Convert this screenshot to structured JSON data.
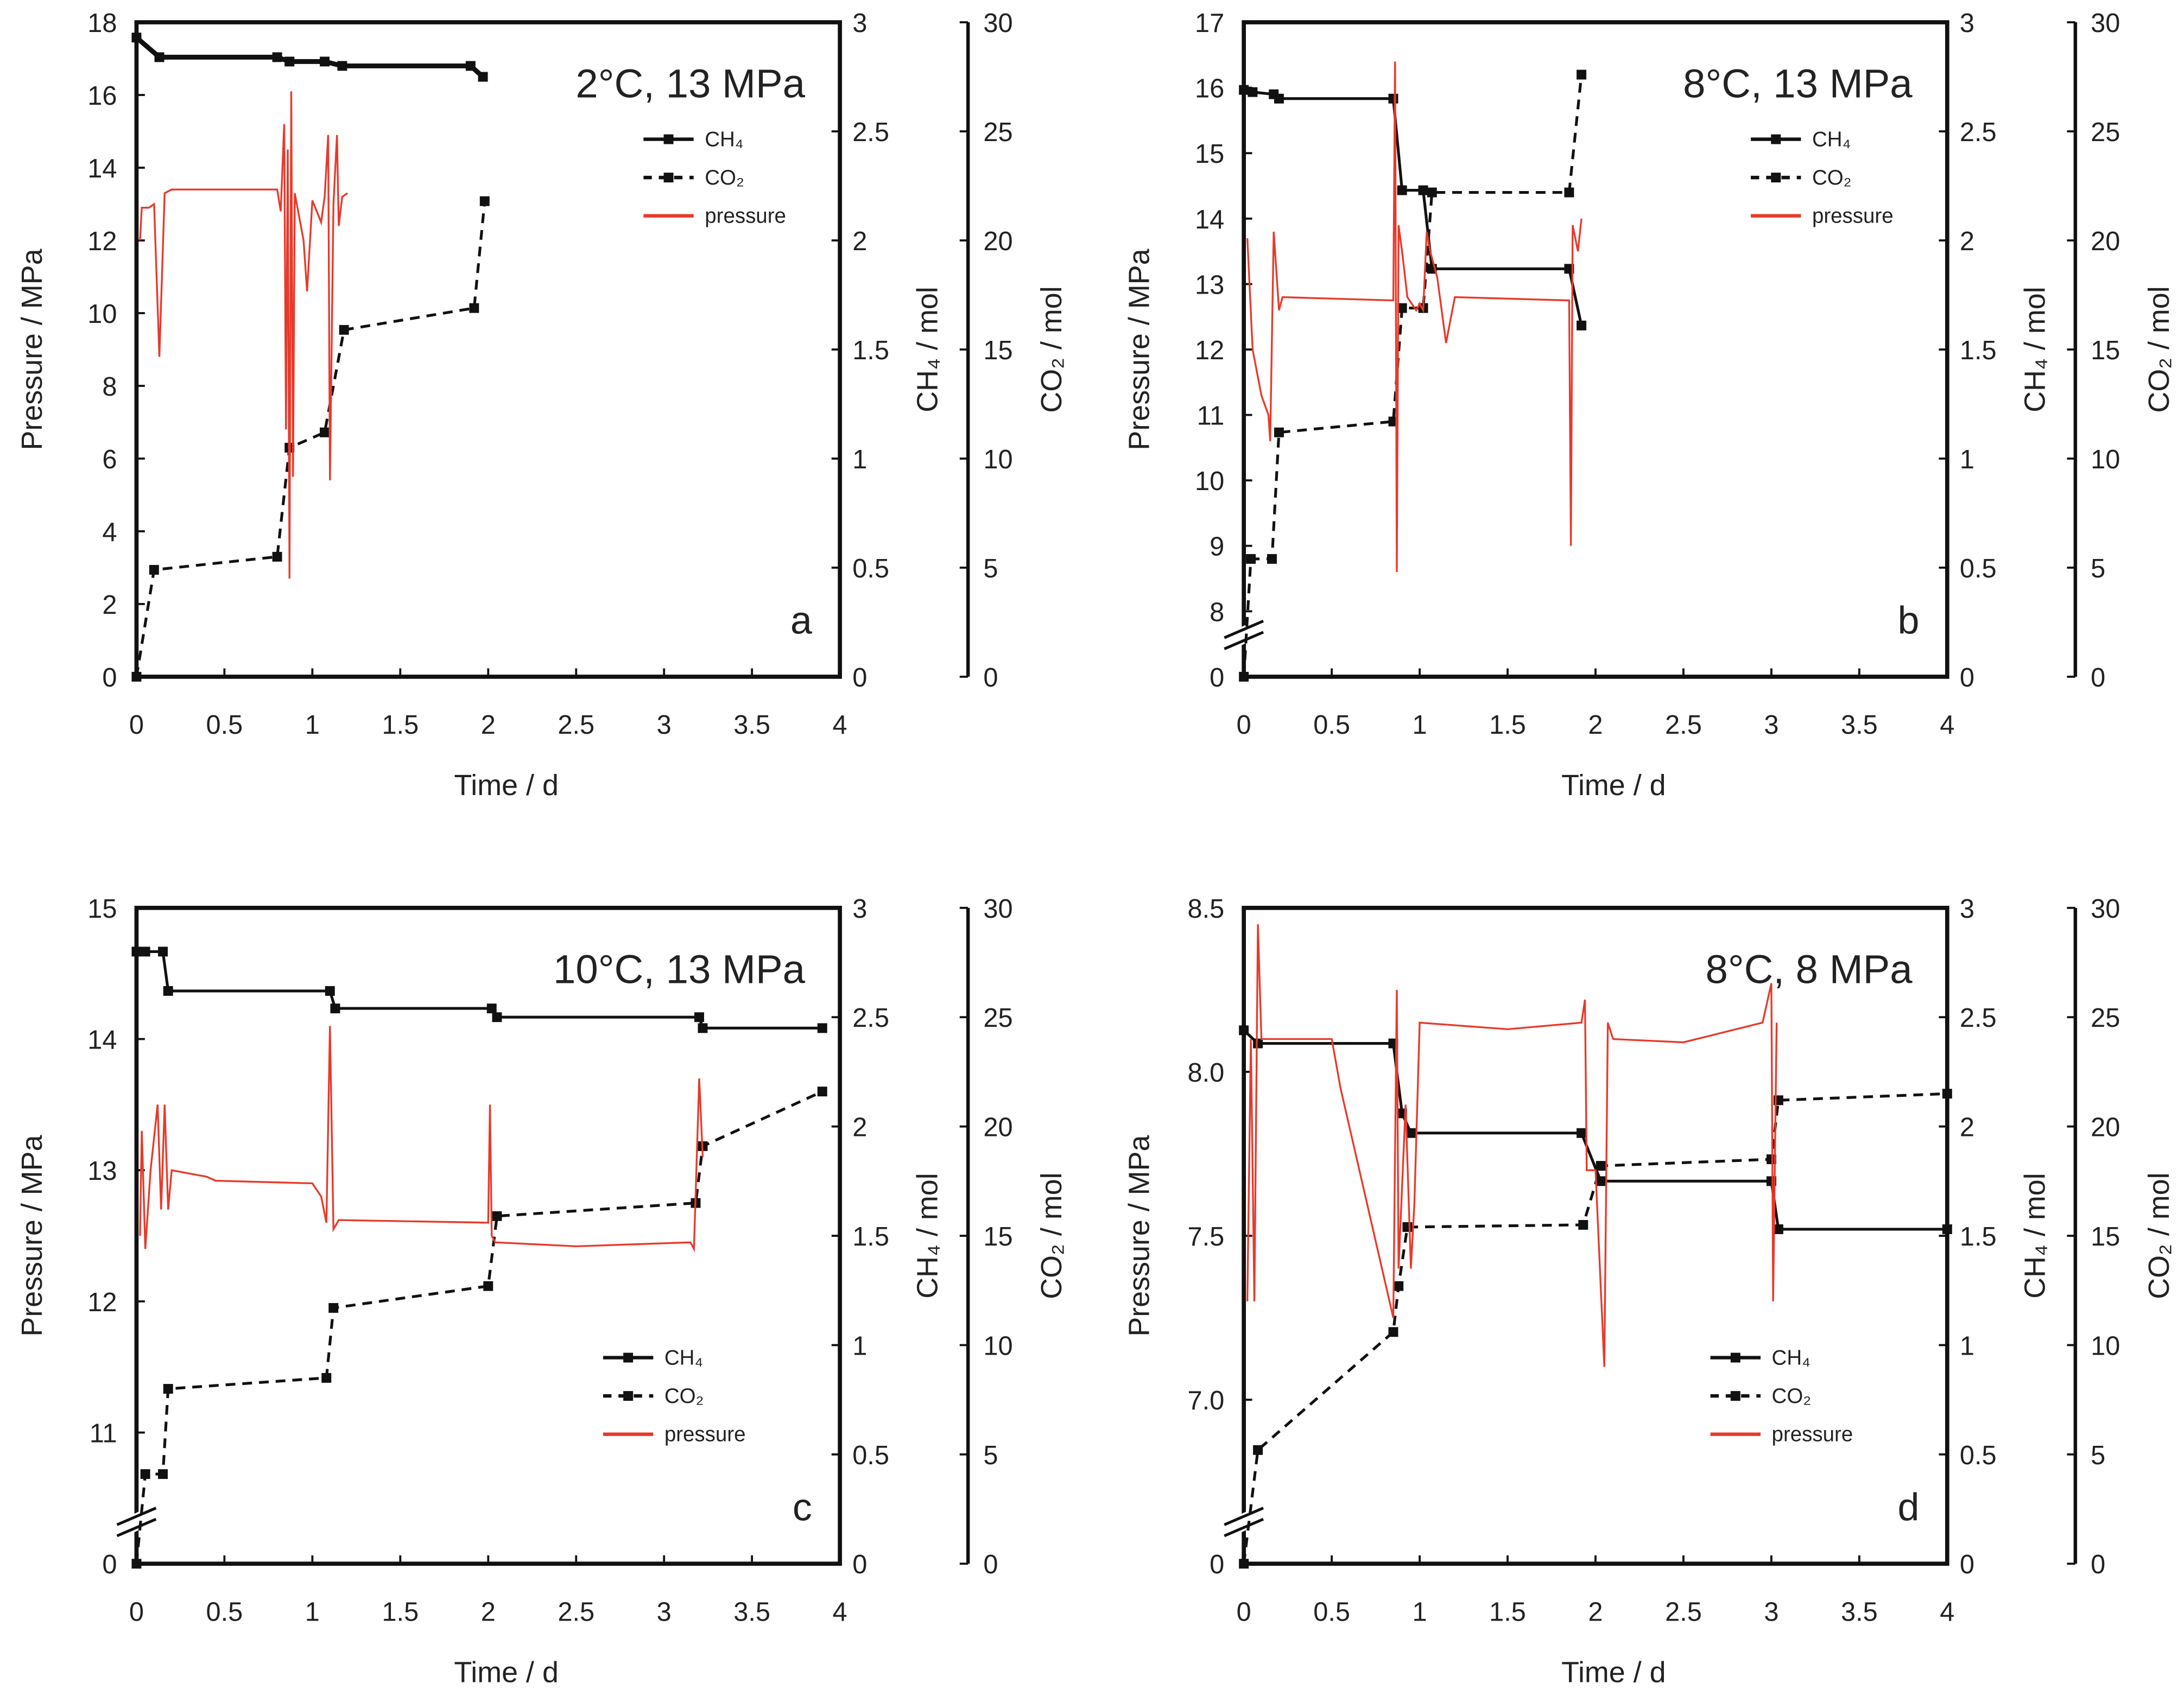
{
  "colors": {
    "pressure": "#e8392a",
    "ch4": "#111111",
    "co2": "#111111",
    "axis": "#111111"
  },
  "chart_data": [
    {
      "type": "line",
      "panel_label": "a",
      "title": "2°C, 13 MPa",
      "xlabel": "Time / d",
      "ylabel": "Pressure / MPa",
      "y2label": "CH₄ / mol",
      "y3label": "CO₂ / mol",
      "xlim": [
        0,
        4
      ],
      "xticks": [
        "0",
        "0.5",
        "1",
        "1.5",
        "2",
        "2.5",
        "3",
        "3.5",
        "4"
      ],
      "ylim": [
        0,
        18
      ],
      "yticks": [
        "0",
        "2",
        "4",
        "6",
        "8",
        "10",
        "12",
        "14",
        "16",
        "18"
      ],
      "axis_break": null,
      "y2lim": [
        0,
        3
      ],
      "y2ticks": [
        "0",
        "0.5",
        "1",
        "1.5",
        "2",
        "2.5",
        "3"
      ],
      "y3lim": [
        0,
        30
      ],
      "y3ticks": [
        "0",
        "5",
        "10",
        "15",
        "20",
        "25",
        "30"
      ],
      "legend_position": "upper-right",
      "legend": [
        "CH₄",
        "CO₂",
        "pressure"
      ],
      "series": [
        {
          "name": "CH₄",
          "axis": "y2",
          "style": "solid-markers",
          "x": [
            0,
            0.13,
            0.8,
            0.87,
            1.07,
            1.17,
            1.9,
            1.97
          ],
          "y": [
            2.93,
            2.84,
            2.84,
            2.82,
            2.82,
            2.8,
            2.8,
            2.75
          ]
        },
        {
          "name": "CO₂",
          "axis": "y3",
          "style": "dashed-markers",
          "x": [
            0,
            0.1,
            0.8,
            0.87,
            1.07,
            1.18,
            1.92,
            1.98
          ],
          "y": [
            0,
            4.9,
            5.5,
            10.5,
            11.2,
            15.9,
            16.9,
            21.8
          ]
        },
        {
          "name": "pressure",
          "axis": "y",
          "style": "line",
          "x": [
            0.02,
            0.03,
            0.07,
            0.1,
            0.13,
            0.16,
            0.2,
            0.8,
            0.82,
            0.84,
            0.85,
            0.86,
            0.87,
            0.88,
            0.89,
            0.9,
            0.95,
            0.97,
            1.0,
            1.05,
            1.07,
            1.09,
            1.1,
            1.12,
            1.14,
            1.15,
            1.17,
            1.2
          ],
          "y": [
            12,
            12.9,
            12.9,
            13,
            8.8,
            13.3,
            13.4,
            13.4,
            12.8,
            15.2,
            6.8,
            14.5,
            2.7,
            16.1,
            5.5,
            13.3,
            12,
            10.6,
            13.1,
            12.5,
            13.2,
            14.9,
            5.4,
            13,
            14.9,
            12.4,
            13.2,
            13.3
          ]
        }
      ]
    },
    {
      "type": "line",
      "panel_label": "b",
      "title": "8°C, 13 MPa",
      "xlabel": "Time / d",
      "ylabel": "Pressure / MPa",
      "y2label": "CH₄ / mol",
      "y3label": "CO₂ / mol",
      "xlim": [
        0,
        4
      ],
      "xticks": [
        "0",
        "0.5",
        "1",
        "1.5",
        "2",
        "2.5",
        "3",
        "3.5",
        "4"
      ],
      "ylim": [
        8,
        17
      ],
      "yticks": [
        "8",
        "9",
        "10",
        "11",
        "12",
        "13",
        "14",
        "15",
        "16",
        "17"
      ],
      "axis_break": {
        "low_label": "0",
        "break_at": 8,
        "step": 1
      },
      "y2lim": [
        0,
        3
      ],
      "y2ticks": [
        "0",
        "0.5",
        "1",
        "1.5",
        "2",
        "2.5",
        "3"
      ],
      "y3lim": [
        0,
        30
      ],
      "y3ticks": [
        "0",
        "5",
        "10",
        "15",
        "20",
        "25",
        "30"
      ],
      "legend_position": "upper-right",
      "legend": [
        "CH₄",
        "CO₂",
        "pressure"
      ],
      "series": [
        {
          "name": "CH₄",
          "axis": "y2",
          "style": "solid-markers",
          "x": [
            0,
            0.05,
            0.17,
            0.2,
            0.85,
            0.9,
            1.02,
            1.07,
            1.85,
            1.92
          ],
          "y": [
            2.69,
            2.68,
            2.67,
            2.65,
            2.65,
            2.23,
            2.23,
            1.87,
            1.87,
            1.61
          ]
        },
        {
          "name": "CO₂",
          "axis": "y3",
          "style": "dashed-markers",
          "x": [
            0,
            0.04,
            0.16,
            0.2,
            0.85,
            0.9,
            1.02,
            1.07,
            1.85,
            1.92
          ],
          "y": [
            0,
            5.4,
            5.4,
            11.2,
            11.7,
            16.9,
            16.9,
            22.2,
            22.2,
            27.6
          ]
        },
        {
          "name": "pressure",
          "axis": "y",
          "style": "line",
          "x": [
            0.02,
            0.05,
            0.1,
            0.14,
            0.15,
            0.17,
            0.2,
            0.22,
            0.85,
            0.86,
            0.87,
            0.88,
            0.9,
            0.93,
            0.98,
            1.0,
            1.02,
            1.04,
            1.06,
            1.1,
            1.15,
            1.2,
            1.85,
            1.86,
            1.87,
            1.9,
            1.92
          ],
          "y": [
            13.7,
            12,
            11.3,
            11.0,
            10.6,
            13.8,
            12.6,
            12.8,
            12.75,
            16.4,
            8.6,
            13.9,
            13.5,
            12.8,
            12.6,
            12.7,
            12.6,
            13.8,
            13.5,
            13.1,
            12.1,
            12.8,
            12.75,
            9.0,
            13.9,
            13.5,
            14.0
          ]
        }
      ]
    },
    {
      "type": "line",
      "panel_label": "c",
      "title": "10°C, 13 MPa",
      "xlabel": "Time / d",
      "ylabel": "Pressure / MPa",
      "y2label": "CH₄ / mol",
      "y3label": "CO₂ / mol",
      "xlim": [
        0,
        4
      ],
      "xticks": [
        "0",
        "0.5",
        "1",
        "1.5",
        "2",
        "2.5",
        "3",
        "3.5",
        "4"
      ],
      "ylim": [
        11,
        15
      ],
      "yticks": [
        "11",
        "12",
        "13",
        "14",
        "15"
      ],
      "axis_break": {
        "low_label": "0",
        "break_at": 11,
        "step": 1
      },
      "y2lim": [
        0,
        3
      ],
      "y2ticks": [
        "0",
        "0.5",
        "1",
        "1.5",
        "2",
        "2.5",
        "3"
      ],
      "y3lim": [
        0,
        30
      ],
      "y3ticks": [
        "0",
        "5",
        "10",
        "15",
        "20",
        "25",
        "30"
      ],
      "legend_position": "lower-right",
      "legend": [
        "CH₄",
        "CO₂",
        "pressure"
      ],
      "series": [
        {
          "name": "CH₄",
          "axis": "y2",
          "style": "solid-markers",
          "x": [
            0,
            0.05,
            0.15,
            0.18,
            1.1,
            1.13,
            2.02,
            2.05,
            3.2,
            3.22,
            3.9
          ],
          "y": [
            2.8,
            2.8,
            2.8,
            2.62,
            2.62,
            2.54,
            2.54,
            2.5,
            2.5,
            2.45,
            2.45
          ]
        },
        {
          "name": "CO₂",
          "axis": "y3",
          "style": "dashed-markers",
          "x": [
            0,
            0.05,
            0.15,
            0.18,
            1.08,
            1.12,
            2.0,
            2.05,
            3.18,
            3.22,
            3.9
          ],
          "y": [
            0,
            4.1,
            4.1,
            8.0,
            8.5,
            11.7,
            12.7,
            15.9,
            16.5,
            19.1,
            21.6
          ]
        },
        {
          "name": "pressure",
          "axis": "y",
          "style": "line",
          "x": [
            0.02,
            0.03,
            0.05,
            0.08,
            0.12,
            0.14,
            0.16,
            0.18,
            0.2,
            0.4,
            0.45,
            1.0,
            1.05,
            1.08,
            1.1,
            1.12,
            1.15,
            2.0,
            2.01,
            2.02,
            2.04,
            2.5,
            3.15,
            3.17,
            3.2,
            3.22
          ],
          "y": [
            12.5,
            13.3,
            12.4,
            13,
            13.5,
            12.7,
            13.5,
            12.7,
            13.0,
            12.95,
            12.92,
            12.9,
            12.8,
            12.6,
            14.1,
            12.55,
            12.62,
            12.6,
            13.5,
            12.5,
            12.45,
            12.42,
            12.45,
            12.4,
            13.7,
            13.1
          ]
        }
      ]
    },
    {
      "type": "line",
      "panel_label": "d",
      "title": "8°C, 8 MPa",
      "xlabel": "Time / d",
      "ylabel": "Pressure / MPa",
      "y2label": "CH₄ / mol",
      "y3label": "CO₂ / mol",
      "xlim": [
        0,
        4
      ],
      "xticks": [
        "0",
        "0.5",
        "1",
        "1.5",
        "2",
        "2.5",
        "3",
        "3.5",
        "4"
      ],
      "ylim": [
        7.0,
        8.5
      ],
      "yticks": [
        "7.0",
        "7.5",
        "8.0",
        "8.5"
      ],
      "axis_break": {
        "low_label": "0",
        "break_at": 7.0,
        "step": 0.5
      },
      "y2lim": [
        0,
        3
      ],
      "y2ticks": [
        "0",
        "0.5",
        "1",
        "1.5",
        "2",
        "2.5",
        "3"
      ],
      "y3lim": [
        0,
        30
      ],
      "y3ticks": [
        "0",
        "5",
        "10",
        "15",
        "20",
        "25",
        "30"
      ],
      "legend_position": "lower-right",
      "legend": [
        "CH₄",
        "CO₂",
        "pressure"
      ],
      "series": [
        {
          "name": "CH₄",
          "axis": "y2",
          "style": "solid-markers",
          "x": [
            0,
            0.08,
            0.85,
            0.9,
            0.95,
            1.92,
            2.03,
            3.0,
            3.04,
            4
          ],
          "y": [
            2.44,
            2.38,
            2.38,
            2.06,
            1.97,
            1.97,
            1.75,
            1.75,
            1.53,
            1.53
          ]
        },
        {
          "name": "CO₂",
          "axis": "y3",
          "style": "dashed-markers",
          "x": [
            0,
            0.08,
            0.85,
            0.88,
            0.93,
            1.93,
            2.03,
            3.0,
            3.04,
            4
          ],
          "y": [
            0,
            5.2,
            10.6,
            12.7,
            15.4,
            15.5,
            18.2,
            18.5,
            21.2,
            21.5
          ]
        },
        {
          "name": "pressure",
          "axis": "y",
          "style": "line",
          "x": [
            0.02,
            0.04,
            0.06,
            0.08,
            0.1,
            0.5,
            0.55,
            0.85,
            0.87,
            0.88,
            0.92,
            0.95,
            0.97,
            1.0,
            1.5,
            1.92,
            1.94,
            1.95,
            2.0,
            2.05,
            2.07,
            2.1,
            2.5,
            2.95,
            3.0,
            3.01,
            3.03
          ],
          "y": [
            7.3,
            8.1,
            7.3,
            8.45,
            8.1,
            8.1,
            7.95,
            7.25,
            8.25,
            7.4,
            7.9,
            7.4,
            7.6,
            8.15,
            8.13,
            8.15,
            8.22,
            7.7,
            7.7,
            7.1,
            8.15,
            8.1,
            8.09,
            8.15,
            8.27,
            7.3,
            8.15
          ]
        }
      ]
    }
  ]
}
